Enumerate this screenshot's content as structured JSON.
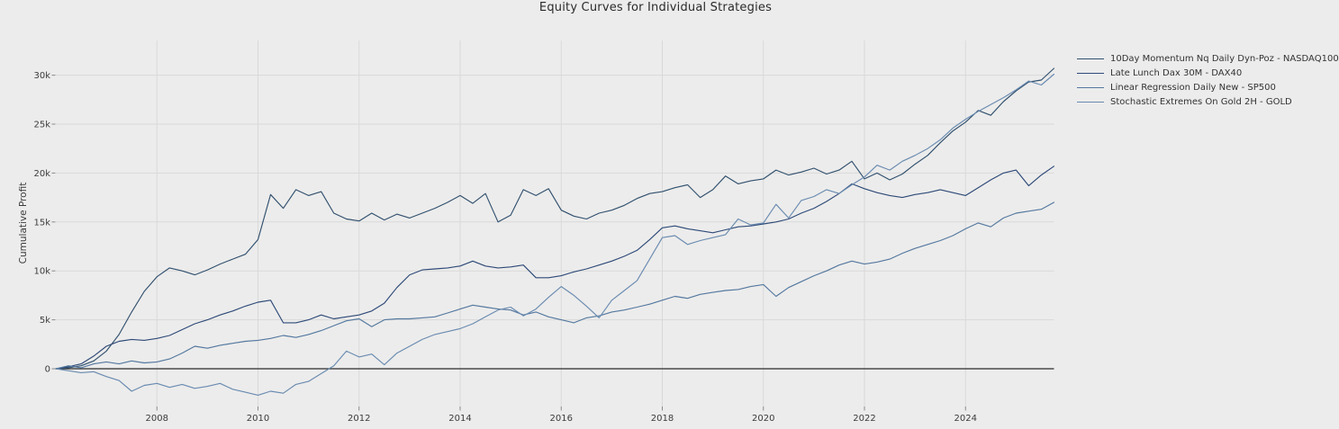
{
  "figure": {
    "background": "#ececec",
    "grid_color": "#d9d9d9",
    "tick_color": "#8a8a8a",
    "zero_line_color": "#2b2b2b",
    "text_color": "#3b3b3b"
  },
  "chart_data": {
    "type": "line",
    "title": "Equity Curves for Individual Strategies",
    "xlabel": "",
    "ylabel": "Cumulative Profit",
    "unit": "thousands (k)",
    "grid": true,
    "legend_position": "right-outside",
    "xlim": [
      2006.0,
      2025.78
    ],
    "ylim_k": [
      -4.1,
      33.5
    ],
    "x_ticks": {
      "values": [
        2008,
        2010,
        2012,
        2014,
        2016,
        2018,
        2020,
        2022,
        2024
      ],
      "labels": [
        "2008",
        "2010",
        "2012",
        "2014",
        "2016",
        "2018",
        "2020",
        "2022",
        "2024"
      ]
    },
    "y_ticks": {
      "values_k": [
        0,
        5,
        10,
        15,
        20,
        25,
        30
      ],
      "labels": [
        "0",
        "5k",
        "10k",
        "15k",
        "20k",
        "25k",
        "30k"
      ]
    },
    "x_years": [
      2006,
      2006.25,
      2006.5,
      2006.75,
      2007,
      2007.25,
      2007.5,
      2007.75,
      2008,
      2008.25,
      2008.5,
      2008.75,
      2009,
      2009.25,
      2009.5,
      2009.75,
      2010,
      2010.25,
      2010.5,
      2010.75,
      2011,
      2011.25,
      2011.5,
      2011.75,
      2012,
      2012.25,
      2012.5,
      2012.75,
      2013,
      2013.25,
      2013.5,
      2013.75,
      2014,
      2014.25,
      2014.5,
      2014.75,
      2015,
      2015.25,
      2015.5,
      2015.75,
      2016,
      2016.25,
      2016.5,
      2016.75,
      2017,
      2017.25,
      2017.5,
      2017.75,
      2018,
      2018.25,
      2018.5,
      2018.75,
      2019,
      2019.25,
      2019.5,
      2019.75,
      2020,
      2020.25,
      2020.5,
      2020.75,
      2021,
      2021.25,
      2021.5,
      2021.75,
      2022,
      2022.25,
      2022.5,
      2022.75,
      2023,
      2023.25,
      2023.5,
      2023.75,
      2024,
      2024.25,
      2024.5,
      2024.75,
      2025,
      2025.25,
      2025.5,
      2025.75
    ],
    "series": [
      {
        "name": "10Day Momentum Nq Daily Dyn-Poz - NASDAQ100",
        "color": "#31506e",
        "values_k": [
          0,
          0.1,
          0.3,
          0.8,
          1.8,
          3.5,
          5.8,
          7.9,
          9.4,
          10.3,
          10,
          9.6,
          10.1,
          10.7,
          11.2,
          11.7,
          13.2,
          17.8,
          16.4,
          18.3,
          17.7,
          18.1,
          15.9,
          15.3,
          15.1,
          15.9,
          15.2,
          15.8,
          15.4,
          15.9,
          16.4,
          17,
          17.7,
          16.9,
          17.9,
          15,
          15.7,
          18.3,
          17.7,
          18.4,
          16.2,
          15.6,
          15.3,
          15.9,
          16.2,
          16.7,
          17.4,
          17.9,
          18.1,
          18.5,
          18.8,
          17.5,
          18.3,
          19.7,
          18.9,
          19.2,
          19.4,
          20.3,
          19.8,
          20.1,
          20.5,
          19.9,
          20.3,
          21.2,
          19.4,
          20,
          19.3,
          19.9,
          20.9,
          21.8,
          23.1,
          24.3,
          25.2,
          26.4,
          25.9,
          27.3,
          28.4,
          29.3,
          29.5,
          30.7
        ]
      },
      {
        "name": "Late Lunch Dax 30M - DAX40",
        "color": "#2e4a78",
        "values_k": [
          0,
          0.2,
          0.5,
          1.3,
          2.3,
          2.8,
          3,
          2.9,
          3.1,
          3.4,
          4,
          4.6,
          5,
          5.5,
          5.9,
          6.4,
          6.8,
          7,
          4.7,
          4.7,
          5,
          5.5,
          5.1,
          5.3,
          5.5,
          5.9,
          6.7,
          8.3,
          9.6,
          10.1,
          10.2,
          10.3,
          10.5,
          11,
          10.5,
          10.3,
          10.4,
          10.6,
          9.3,
          9.3,
          9.5,
          9.9,
          10.2,
          10.6,
          11,
          11.5,
          12.1,
          13.2,
          14.4,
          14.6,
          14.3,
          14.1,
          13.9,
          14.2,
          14.5,
          14.6,
          14.8,
          15,
          15.3,
          15.9,
          16.4,
          17.1,
          17.9,
          18.9,
          18.4,
          18,
          17.7,
          17.5,
          17.8,
          18,
          18.3,
          18,
          17.7,
          18.5,
          19.3,
          20,
          20.3,
          18.7,
          19.8,
          20.7
        ]
      },
      {
        "name": "Linear Regression Daily New - SP500",
        "color": "#54789f",
        "values_k": [
          0,
          0.3,
          0.1,
          0.5,
          0.7,
          0.5,
          0.8,
          0.6,
          0.7,
          1,
          1.6,
          2.3,
          2.1,
          2.4,
          2.6,
          2.8,
          2.9,
          3.1,
          3.4,
          3.2,
          3.5,
          3.9,
          4.4,
          4.9,
          5.1,
          4.3,
          5,
          5.1,
          5.1,
          5.2,
          5.3,
          5.7,
          6.1,
          6.5,
          6.3,
          6.1,
          6,
          5.5,
          5.8,
          5.3,
          5,
          4.7,
          5.2,
          5.4,
          5.8,
          6,
          6.3,
          6.6,
          7,
          7.4,
          7.2,
          7.6,
          7.8,
          8,
          8.1,
          8.4,
          8.6,
          7.4,
          8.3,
          8.9,
          9.5,
          10,
          10.6,
          11,
          10.7,
          10.9,
          11.2,
          11.8,
          12.3,
          12.7,
          13.1,
          13.6,
          14.3,
          14.9,
          14.5,
          15.4,
          15.9,
          16.1,
          16.3,
          17
        ]
      },
      {
        "name": "Stochastic Extremes On Gold 2H - GOLD",
        "color": "#6a8bb0",
        "values_k": [
          0,
          -0.2,
          -0.4,
          -0.3,
          -0.8,
          -1.2,
          -2.3,
          -1.7,
          -1.5,
          -1.9,
          -1.6,
          -2,
          -1.8,
          -1.5,
          -2.1,
          -2.4,
          -2.7,
          -2.3,
          -2.5,
          -1.6,
          -1.3,
          -0.5,
          0.3,
          1.8,
          1.2,
          1.5,
          0.4,
          1.6,
          2.3,
          3,
          3.5,
          3.8,
          4.1,
          4.6,
          5.3,
          6,
          6.3,
          5.4,
          6.1,
          7.3,
          8.4,
          7.5,
          6.4,
          5.2,
          7,
          8,
          9,
          11.2,
          13.4,
          13.6,
          12.7,
          13.1,
          13.4,
          13.7,
          15.3,
          14.7,
          14.9,
          16.8,
          15.4,
          17.2,
          17.6,
          18.3,
          17.9,
          18.8,
          19.6,
          20.8,
          20.3,
          21.2,
          21.8,
          22.5,
          23.4,
          24.6,
          25.5,
          26.3,
          27,
          27.7,
          28.5,
          29.4,
          29,
          30.1
        ]
      }
    ]
  }
}
